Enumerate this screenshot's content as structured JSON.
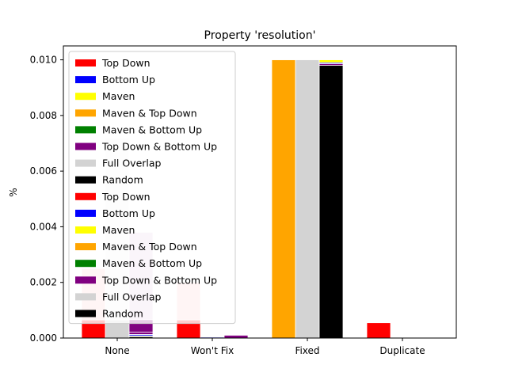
{
  "chart_data": {
    "type": "bar",
    "title": "Property 'resolution'",
    "ylabel": "%",
    "xlabel": "",
    "ylim": [
      0,
      0.0105
    ],
    "yticks": [
      "0.000",
      "0.002",
      "0.004",
      "0.006",
      "0.008",
      "0.010"
    ],
    "categories": [
      "None",
      "Won't Fix",
      "Fixed",
      "Duplicate"
    ],
    "grid": false,
    "legend_position": "upper-left",
    "group_a": {
      "opacity": 0.2,
      "columns": [
        {
          "category": "None",
          "position": "left",
          "segments": [
            {
              "series": "Top Down",
              "color": "#ff0000",
              "value": 0.0025
            }
          ]
        },
        {
          "category": "None",
          "position": "middle",
          "segments": [
            {
              "series": "Full Overlap",
              "color": "#d3d3d3",
              "value": 0.0072
            }
          ]
        },
        {
          "category": "None",
          "position": "right",
          "segments": [
            {
              "series": "Top Down & Bottom Up",
              "color": "#800080",
              "value": 0.0038
            }
          ]
        },
        {
          "category": "Won't Fix",
          "position": "left",
          "segments": [
            {
              "series": "Top Down",
              "color": "#ff0000",
              "value": 0.002
            }
          ]
        }
      ]
    },
    "group_b": {
      "opacity": 1.0,
      "columns": [
        {
          "category": "None",
          "position": "left",
          "segments": [
            {
              "series": "Top Down",
              "color": "#ff0000",
              "value": 0.00065
            }
          ]
        },
        {
          "category": "None",
          "position": "middle",
          "segments": [
            {
              "series": "Full Overlap",
              "color": "#d3d3d3",
              "value": 0.00065
            }
          ]
        },
        {
          "category": "None",
          "position": "right",
          "segments": [
            {
              "series": "Random",
              "color": "#000000",
              "value": 5e-05
            },
            {
              "series": "Maven",
              "color": "#ffff00",
              "value": 3e-05
            },
            {
              "series": "Bottom Up",
              "color": "#0000ff",
              "value": 5e-05
            },
            {
              "series": "Top Down & Bottom Up",
              "color": "#800080",
              "value": 8e-05
            },
            {
              "series": "Top Down & Bottom Up",
              "color": "#800080",
              "value": 0.00045
            }
          ]
        },
        {
          "category": "Won't Fix",
          "position": "left",
          "segments": [
            {
              "series": "Top Down",
              "color": "#ff0000",
              "value": 0.00065
            }
          ]
        },
        {
          "category": "Won't Fix",
          "position": "middle",
          "segments": [
            {
              "series": "Bottom Up",
              "color": "#0000ff",
              "value": 3e-05
            }
          ]
        },
        {
          "category": "Won't Fix",
          "position": "right",
          "segments": [
            {
              "series": "Top Down & Bottom Up",
              "color": "#800080",
              "value": 0.0001
            }
          ]
        },
        {
          "category": "Fixed",
          "position": "left",
          "segments": [
            {
              "series": "Maven & Top Down",
              "color": "#ffa500",
              "value": 0.01
            }
          ]
        },
        {
          "category": "Fixed",
          "position": "middle",
          "segments": [
            {
              "series": "Full Overlap",
              "color": "#d3d3d3",
              "value": 0.01
            }
          ]
        },
        {
          "category": "Fixed",
          "position": "right",
          "segments": [
            {
              "series": "Random",
              "color": "#000000",
              "value": 0.0098
            },
            {
              "series": "Top Down & Bottom Up",
              "color": "#800080",
              "value": 6e-05
            },
            {
              "series": "Bottom Up",
              "color": "#0000ff",
              "value": 4e-05
            },
            {
              "series": "Maven",
              "color": "#ffff00",
              "value": 0.0001
            }
          ]
        },
        {
          "category": "Duplicate",
          "position": "left",
          "segments": [
            {
              "series": "Top Down",
              "color": "#ff0000",
              "value": 0.00055
            }
          ]
        }
      ]
    },
    "legend": [
      {
        "label": "Top Down",
        "color": "#ff0000"
      },
      {
        "label": "Bottom Up",
        "color": "#0000ff"
      },
      {
        "label": "Maven",
        "color": "#ffff00"
      },
      {
        "label": "Maven & Top Down",
        "color": "#ffa500"
      },
      {
        "label": "Maven & Bottom Up",
        "color": "#008000"
      },
      {
        "label": "Top Down & Bottom Up",
        "color": "#800080"
      },
      {
        "label": "Full Overlap",
        "color": "#d3d3d3"
      },
      {
        "label": "Random",
        "color": "#000000"
      },
      {
        "label": "Top Down",
        "color": "#ff0000"
      },
      {
        "label": "Bottom Up",
        "color": "#0000ff"
      },
      {
        "label": "Maven",
        "color": "#ffff00"
      },
      {
        "label": "Maven & Top Down",
        "color": "#ffa500"
      },
      {
        "label": "Maven & Bottom Up",
        "color": "#008000"
      },
      {
        "label": "Top Down & Bottom Up",
        "color": "#800080"
      },
      {
        "label": "Full Overlap",
        "color": "#d3d3d3"
      },
      {
        "label": "Random",
        "color": "#000000"
      }
    ]
  }
}
